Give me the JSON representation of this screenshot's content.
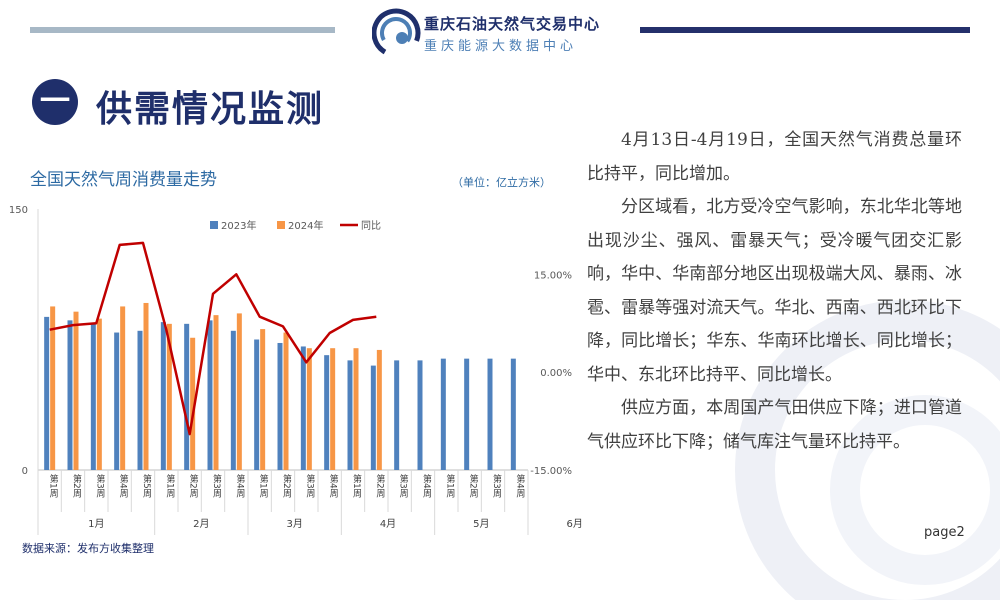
{
  "header": {
    "org_name": "重庆石油天然气交易中心",
    "org_sub": "重庆能源大数据中心",
    "section_number": "一",
    "section_title": "供需情况监测"
  },
  "chart_data": {
    "type": "bar",
    "title": "全国天然气周消费量走势",
    "unit": "（单位：亿立方米）",
    "categories": [
      "第1周",
      "第2周",
      "第3周",
      "第4周",
      "第5周",
      "第1周",
      "第2周",
      "第3周",
      "第4周",
      "第1周",
      "第2周",
      "第3周",
      "第4周",
      "第1周",
      "第2周",
      "第3周",
      "第4周",
      "第1周",
      "第2周",
      "第3周",
      "第4周"
    ],
    "months": [
      {
        "label": "1月",
        "count": 5
      },
      {
        "label": "2月",
        "count": 4
      },
      {
        "label": "3月",
        "count": 4
      },
      {
        "label": "4月",
        "count": 4
      },
      {
        "label": "5月",
        "count": 4
      },
      {
        "label": "6月",
        "count": 4
      }
    ],
    "series": [
      {
        "name": "2023年",
        "type": "bar",
        "axis": "left",
        "color": "#4f81bd",
        "values": [
          88,
          86,
          84,
          79,
          80,
          85,
          84,
          86,
          80,
          75,
          73,
          71,
          66,
          63,
          60,
          63,
          63,
          64,
          64,
          64,
          64
        ]
      },
      {
        "name": "2024年",
        "type": "bar",
        "axis": "left",
        "color": "#f79646",
        "values": [
          94,
          91,
          87,
          94,
          96,
          84,
          76,
          89,
          90,
          81,
          79,
          70,
          70,
          70,
          69,
          null,
          null,
          null,
          null,
          null,
          null
        ]
      },
      {
        "name": "同比",
        "type": "line",
        "axis": "right",
        "color": "#c00000",
        "values": [
          6.5,
          7.2,
          7.5,
          19.5,
          19.8,
          6.5,
          -9.5,
          12,
          15,
          8.5,
          7,
          1.5,
          6,
          8,
          8.5,
          null,
          null,
          null,
          null,
          null,
          null
        ]
      }
    ],
    "y_left": {
      "min": 0,
      "max": 150,
      "ticks": [
        0,
        150
      ]
    },
    "y_right": {
      "min": -15,
      "max": 25,
      "ticks": [
        -15,
        0,
        15
      ],
      "tick_labels": [
        "-15.00%",
        "0.00%",
        "15.00%"
      ]
    },
    "grid": false,
    "legend_position": "top"
  },
  "source": "数据来源：发布方收集整理",
  "paragraphs": [
    "4月13日-4月19日，全国天然气消费总量环比持平，同比增加。",
    "分区域看，北方受冷空气影响，东北华北等地出现沙尘、强风、雷暴天气；受冷暖气团交汇影响，华中、华南部分地区出现极端大风、暴雨、冰雹、雷暴等强对流天气。华北、西南、西北环比下降，同比增长；华东、华南环比增长、同比增长；华中、东北环比持平、同比增长。",
    "供应方面，本周国产气田供应下降；进口管道气供应环比下降；储气库注气量环比持平。"
  ],
  "page_label": "page2"
}
